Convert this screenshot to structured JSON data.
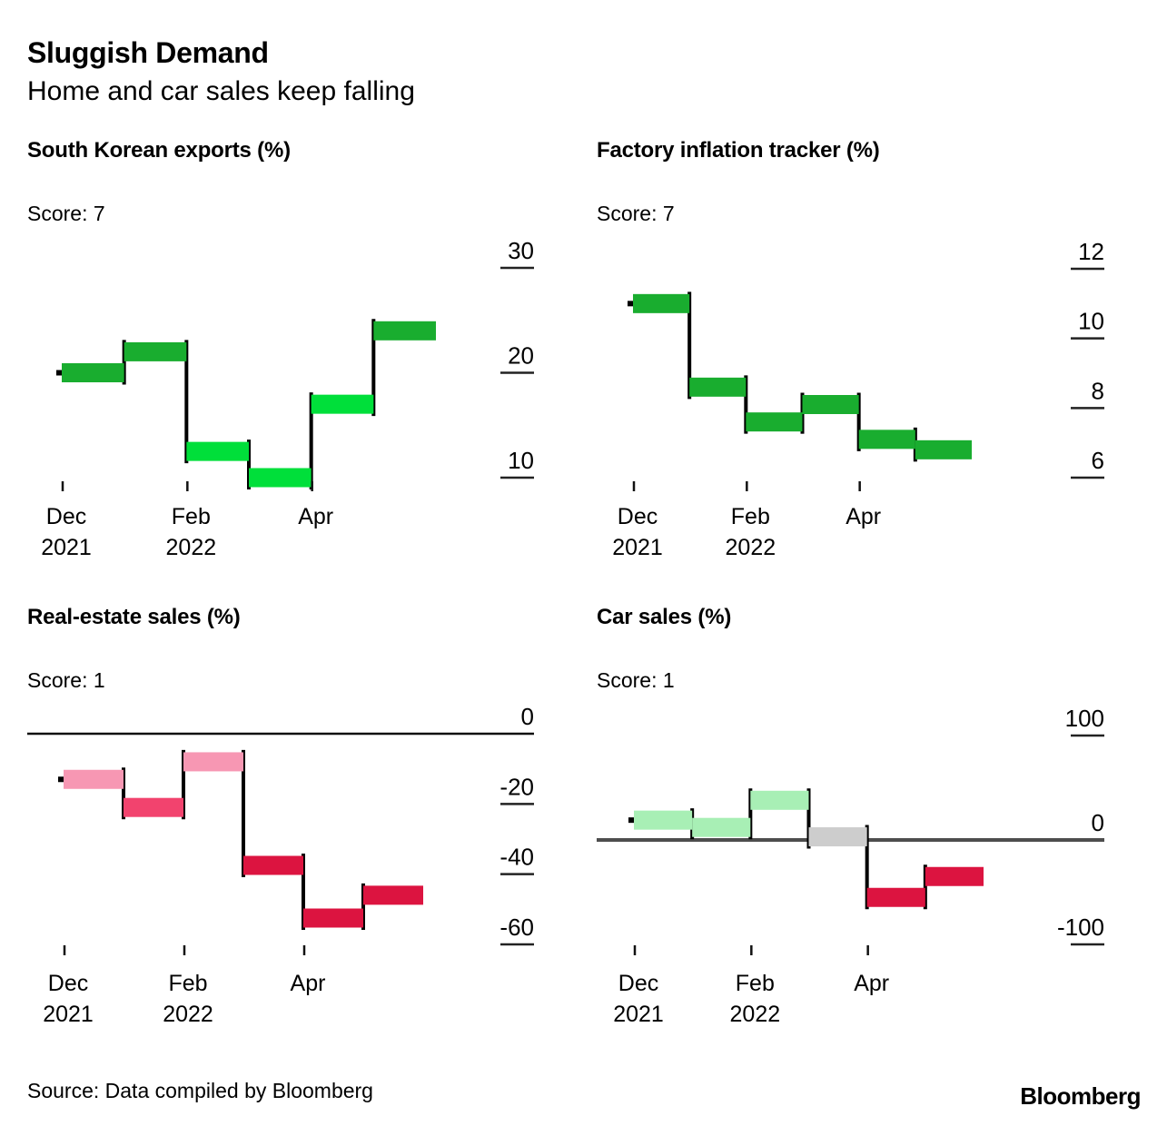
{
  "header": {
    "title": "Sluggish Demand",
    "subtitle": "Home and car sales keep falling"
  },
  "footer": {
    "source": "Source: Data compiled by Bloomberg",
    "logo": "Bloomberg"
  },
  "palette": {
    "dark_green": "#19ad2f",
    "bright_green": "#00df3a",
    "light_green": "#a8efb5",
    "grey": "#cdcdcd",
    "light_pink": "#f797b3",
    "mid_pink": "#f2436e",
    "crimson": "#dc1440",
    "black": "#000000",
    "axis_dash": "#222222",
    "zero_line_dark": "#111111",
    "zero_line_grey": "#4d4d4d"
  },
  "chart_data": [
    {
      "type": "waterfall-step",
      "title": "South Korean exports (%)",
      "score_label": "Score: 7",
      "unit": "%",
      "values": [
        20,
        22,
        12.5,
        10,
        17,
        24
      ],
      "bar_colors": [
        "dark_green",
        "dark_green",
        "bright_green",
        "bright_green",
        "bright_green",
        "dark_green"
      ],
      "yticks": [
        30,
        20,
        10
      ],
      "ylim": [
        8,
        32
      ],
      "zero_line": false,
      "xticks": [
        {
          "step": 0,
          "label": [
            "Dec",
            "2021"
          ]
        },
        {
          "step": 2,
          "label": [
            "Feb",
            "2022"
          ]
        },
        {
          "step": 4,
          "label": [
            "Apr"
          ]
        }
      ]
    },
    {
      "type": "waterfall-step",
      "title": "Factory inflation tracker (%)",
      "score_label": "Score: 7",
      "unit": "%",
      "values": [
        11,
        8.6,
        7.6,
        8.1,
        7.1,
        6.8
      ],
      "bar_colors": [
        "dark_green",
        "dark_green",
        "dark_green",
        "dark_green",
        "dark_green",
        "dark_green"
      ],
      "yticks": [
        12,
        10,
        8,
        6
      ],
      "ylim": [
        5.5,
        12
      ],
      "zero_line": false,
      "xticks": [
        {
          "step": 0,
          "label": [
            "Dec",
            "2021"
          ]
        },
        {
          "step": 2,
          "label": [
            "Feb",
            "2022"
          ]
        },
        {
          "step": 4,
          "label": [
            "Apr"
          ]
        }
      ]
    },
    {
      "type": "waterfall-step",
      "title": "Real-estate sales (%)",
      "score_label": "Score: 1",
      "unit": "%",
      "values": [
        -13,
        -21,
        -8,
        -37.5,
        -52.5,
        -46
      ],
      "bar_colors": [
        "light_pink",
        "mid_pink",
        "light_pink",
        "crimson",
        "crimson",
        "crimson"
      ],
      "yticks": [
        0,
        -20,
        -40,
        -60
      ],
      "ylim": [
        -60,
        0
      ],
      "zero_line": true,
      "xticks": [
        {
          "step": 0,
          "label": [
            "Dec",
            "2021"
          ]
        },
        {
          "step": 2,
          "label": [
            "Feb",
            "2022"
          ]
        },
        {
          "step": 4,
          "label": [
            "Apr"
          ]
        }
      ]
    },
    {
      "type": "waterfall-step",
      "title": "Car sales (%)",
      "score_label": "Score: 1",
      "unit": "%",
      "values": [
        19,
        12,
        38,
        3,
        -55,
        -35
      ],
      "bar_colors": [
        "light_green",
        "light_green",
        "light_green",
        "grey",
        "crimson",
        "crimson"
      ],
      "yticks": [
        100,
        0,
        -100
      ],
      "ylim": [
        -100,
        100
      ],
      "zero_line": true,
      "xticks": [
        {
          "step": 0,
          "label": [
            "Dec",
            "2021"
          ]
        },
        {
          "step": 2,
          "label": [
            "Feb",
            "2022"
          ]
        },
        {
          "step": 4,
          "label": [
            "Apr"
          ]
        }
      ]
    }
  ]
}
